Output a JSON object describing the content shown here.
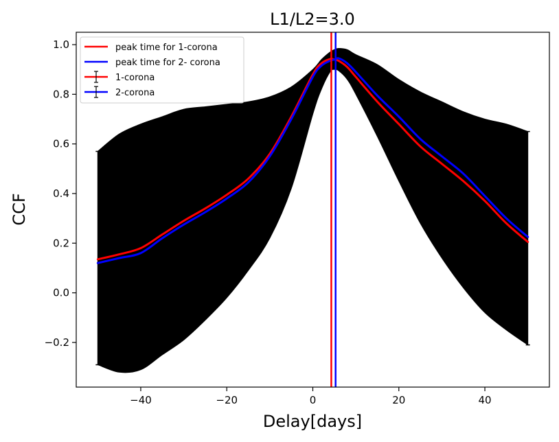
{
  "chart_data": {
    "type": "line",
    "title": "L1/L2=3.0",
    "xlabel": "Delay[days]",
    "ylabel": "CCF",
    "xlim": [
      -55,
      55
    ],
    "ylim": [
      -0.38,
      1.05
    ],
    "xticks": [
      -40,
      -20,
      0,
      20,
      40
    ],
    "xtick_labels": [
      "−40",
      "−20",
      "0",
      "20",
      "40"
    ],
    "yticks": [
      -0.2,
      0.0,
      0.2,
      0.4,
      0.6,
      0.8,
      1.0
    ],
    "ytick_labels": [
      "−0.2",
      "0.0",
      "0.2",
      "0.4",
      "0.6",
      "0.8",
      "1.0"
    ],
    "grid": false,
    "legend_position": "top-left",
    "legend": [
      {
        "label": "peak time for 1-corona",
        "kind": "line",
        "color": "#ff0000"
      },
      {
        "label": "peak time for 2- corona",
        "kind": "line",
        "color": "#0000ff"
      },
      {
        "label": "1-corona",
        "kind": "errorbar",
        "color": "#ff0000"
      },
      {
        "label": "2-corona",
        "kind": "errorbar",
        "color": "#0000ff"
      }
    ],
    "x": [
      -50,
      -45,
      -40,
      -35,
      -30,
      -25,
      -20,
      -15,
      -10,
      -5,
      0,
      2,
      4,
      5,
      6,
      8,
      10,
      15,
      20,
      25,
      30,
      35,
      40,
      45,
      50
    ],
    "error_band": {
      "color": "#000000",
      "upper": [
        0.57,
        0.64,
        0.68,
        0.71,
        0.74,
        0.75,
        0.76,
        0.77,
        0.79,
        0.83,
        0.9,
        0.94,
        0.97,
        0.98,
        0.985,
        0.98,
        0.96,
        0.92,
        0.86,
        0.81,
        0.77,
        0.73,
        0.7,
        0.68,
        0.65
      ],
      "lower": [
        -0.29,
        -0.32,
        -0.31,
        -0.25,
        -0.19,
        -0.11,
        -0.02,
        0.09,
        0.22,
        0.42,
        0.72,
        0.82,
        0.89,
        0.9,
        0.895,
        0.86,
        0.8,
        0.63,
        0.45,
        0.28,
        0.14,
        0.02,
        -0.08,
        -0.15,
        -0.21
      ]
    },
    "series": [
      {
        "name": "1-corona",
        "color": "#ff0000",
        "values": [
          0.135,
          0.155,
          0.18,
          0.235,
          0.29,
          0.34,
          0.395,
          0.46,
          0.56,
          0.71,
          0.88,
          0.925,
          0.942,
          0.94,
          0.935,
          0.91,
          0.87,
          0.77,
          0.68,
          0.59,
          0.52,
          0.45,
          0.37,
          0.28,
          0.205
        ]
      },
      {
        "name": "2-corona",
        "color": "#0000ff",
        "values": [
          0.12,
          0.14,
          0.16,
          0.22,
          0.275,
          0.325,
          0.38,
          0.445,
          0.55,
          0.7,
          0.87,
          0.915,
          0.935,
          0.94,
          0.945,
          0.925,
          0.89,
          0.795,
          0.71,
          0.62,
          0.55,
          0.48,
          0.39,
          0.3,
          0.225
        ]
      }
    ],
    "peak_lines": [
      {
        "name": "peak time for 1-corona",
        "x": 4.3,
        "color": "#ff0000"
      },
      {
        "name": "peak time for 2- corona",
        "x": 5.3,
        "color": "#0000ff"
      }
    ]
  }
}
